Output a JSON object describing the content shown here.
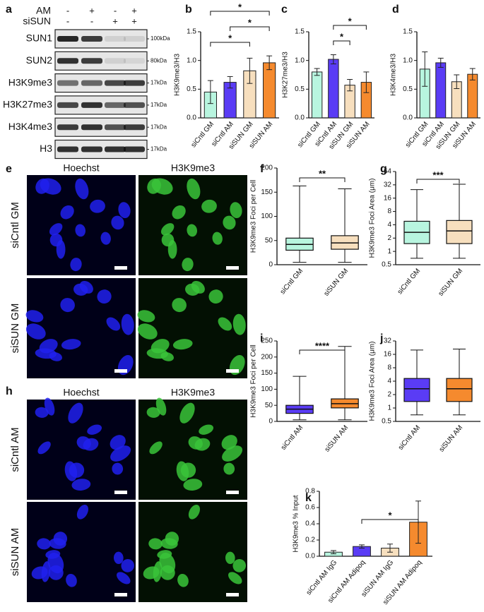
{
  "panel_labels": [
    "a",
    "b",
    "c",
    "d",
    "e",
    "f",
    "g",
    "h",
    "i",
    "j",
    "k"
  ],
  "blot": {
    "header_rows": [
      {
        "label": "AM",
        "lanes": [
          "-",
          "+",
          "-",
          "+"
        ]
      },
      {
        "label": "siSUN",
        "lanes": [
          "-",
          "-",
          "+",
          "+"
        ]
      }
    ],
    "rows": [
      {
        "label": "SUN1",
        "size": "100kDa"
      },
      {
        "label": "SUN2",
        "size": "80kDa"
      },
      {
        "label": "H3K9me3",
        "size": "17kDa"
      },
      {
        "label": "H3K27me3",
        "size": "17kDa"
      },
      {
        "label": "H3K4me3",
        "size": "17kDa"
      },
      {
        "label": "H3",
        "size": "17kDa"
      }
    ]
  },
  "images": {
    "e": {
      "columns": [
        "Hoechst",
        "H3K9me3"
      ],
      "rows": [
        "siCntl GM",
        "siSUN GM"
      ]
    },
    "h": {
      "columns": [
        "Hoechst",
        "H3K9me3"
      ],
      "rows": [
        "siCntl AM",
        "siSUN AM"
      ]
    }
  },
  "chart_data": [
    {
      "type": "bar",
      "ylabel": "H3K9me3/H3",
      "categories": [
        "siCntl GM",
        "siCntl AM",
        "siSUN GM",
        "siSUN AM"
      ],
      "values": [
        0.45,
        0.62,
        0.82,
        0.96
      ],
      "errors": [
        0.2,
        0.1,
        0.22,
        0.12
      ],
      "colors": [
        "#b8f5df",
        "#5a3cf5",
        "#f7dfbe",
        "#f58a2e"
      ],
      "ylim": [
        0,
        1.5
      ],
      "yticks": [
        {
          "value": 0,
          "label": "0.0"
        },
        0.5,
        {
          "value": 1,
          "label": "1.0"
        },
        1.5
      ],
      "annotations": [
        {
          "text": "*",
          "between": [
            "siCntl GM",
            "siSUN AM"
          ]
        },
        {
          "text": "*",
          "between": [
            "siCntl AM",
            "siSUN AM"
          ]
        },
        {
          "text": "*",
          "between": [
            "siCntl GM",
            "siSUN GM"
          ]
        }
      ]
    },
    {
      "type": "bar",
      "ylabel": "H3K27me3/H3",
      "categories": [
        "siCntl GM",
        "siCntl AM",
        "siSUN GM",
        "siSUN AM"
      ],
      "values": [
        0.8,
        1.02,
        0.57,
        0.62
      ],
      "errors": [
        0.06,
        0.08,
        0.1,
        0.18
      ],
      "colors": [
        "#b8f5df",
        "#5a3cf5",
        "#f7dfbe",
        "#f58a2e"
      ],
      "ylim": [
        0,
        1.5
      ],
      "yticks": [
        {
          "value": 0,
          "label": "0.0"
        },
        0.5,
        {
          "value": 1,
          "label": "1.0"
        },
        1.5
      ],
      "annotations": [
        {
          "text": "*",
          "between": [
            "siCntl AM",
            "siSUN AM"
          ]
        },
        {
          "text": "*",
          "between": [
            "siCntl AM",
            "siSUN GM"
          ]
        }
      ]
    },
    {
      "type": "bar",
      "ylabel": "H3K4me3/H3",
      "categories": [
        "siCntl GM",
        "siCntl AM",
        "siSUN GM",
        "siSUN AM"
      ],
      "values": [
        0.85,
        0.96,
        0.63,
        0.76
      ],
      "errors": [
        0.3,
        0.08,
        0.12,
        0.1
      ],
      "colors": [
        "#b8f5df",
        "#5a3cf5",
        "#f7dfbe",
        "#f58a2e"
      ],
      "ylim": [
        0,
        1.5
      ],
      "yticks": [
        {
          "value": 0,
          "label": "0.0"
        },
        0.5,
        {
          "value": 1,
          "label": "1.0"
        },
        1.5
      ],
      "annotations": []
    },
    {
      "type": "box",
      "ylabel": "H3K9me3 Foci per Cell",
      "categories": [
        "siCntl GM",
        "siSUN GM"
      ],
      "min": [
        5,
        5
      ],
      "q1": [
        30,
        32
      ],
      "median": [
        42,
        45
      ],
      "q3": [
        55,
        60
      ],
      "max": [
        163,
        157
      ],
      "colors": [
        "#b8f5df",
        "#f7dfbe"
      ],
      "ylim": [
        0,
        200
      ],
      "yticks": [
        0,
        50,
        100,
        150,
        200
      ],
      "annotations": [
        {
          "text": "**",
          "between": [
            "siCntl GM",
            "siSUN GM"
          ]
        }
      ]
    },
    {
      "type": "box",
      "ylabel": "H3K9me3 Foci Area (μm)",
      "log_scale": true,
      "categories": [
        "siCntl GM",
        "siSUN GM"
      ],
      "min": [
        0.7,
        0.7
      ],
      "q1": [
        1.5,
        1.5
      ],
      "median": [
        2.7,
        2.9
      ],
      "q3": [
        4.8,
        5
      ],
      "max": [
        25,
        33
      ],
      "colors": [
        "#b8f5df",
        "#f7dfbe"
      ],
      "ylim": [
        0.5,
        64
      ],
      "yticks": [
        0.5,
        1,
        2,
        4,
        8,
        16,
        32,
        64
      ],
      "annotations": [
        {
          "text": "***",
          "between": [
            "siCntl GM",
            "siSUN GM"
          ]
        }
      ]
    },
    {
      "type": "box",
      "ylabel": "H3K9me3 Foci per Cell",
      "categories": [
        "siCntl AM",
        "siSUN AM"
      ],
      "min": [
        5,
        5
      ],
      "q1": [
        25,
        42
      ],
      "median": [
        38,
        55
      ],
      "q3": [
        50,
        70
      ],
      "max": [
        140,
        233
      ],
      "colors": [
        "#5a3cf5",
        "#f58a2e"
      ],
      "ylim": [
        0,
        250
      ],
      "yticks": [
        0,
        50,
        100,
        150,
        200,
        250
      ],
      "annotations": [
        {
          "text": "****",
          "between": [
            "siCntl AM",
            "siSUN AM"
          ]
        }
      ]
    },
    {
      "type": "box",
      "ylabel": "H3K9me3 Foci Area (μm)",
      "log_scale": true,
      "categories": [
        "siCntl AM",
        "siSUN AM"
      ],
      "min": [
        0.7,
        0.7
      ],
      "q1": [
        1.4,
        1.4
      ],
      "median": [
        2.7,
        2.7
      ],
      "q3": [
        4.6,
        4.6
      ],
      "max": [
        20,
        21
      ],
      "colors": [
        "#5a3cf5",
        "#f58a2e"
      ],
      "ylim": [
        0.5,
        32
      ],
      "yticks": [
        0.5,
        1,
        2,
        4,
        8,
        16,
        32
      ],
      "annotations": []
    },
    {
      "type": "bar",
      "ylabel": "H3K9me3 % Input",
      "categories": [
        "siCntl AM IgG",
        "siCntl AM Adipoq",
        "siSUN AM IgG",
        "siSUN AM Adipoq"
      ],
      "values": [
        0.05,
        0.12,
        0.1,
        0.42
      ],
      "errors": [
        0.02,
        0.02,
        0.05,
        0.26
      ],
      "colors": [
        "#b8f5df",
        "#5a3cf5",
        "#f7dfbe",
        "#f58a2e"
      ],
      "ylim": [
        0,
        0.8
      ],
      "yticks": [
        {
          "value": 0,
          "label": "0.0"
        },
        0.2,
        0.4,
        0.6,
        0.8
      ],
      "annotations": [
        {
          "text": "*",
          "between": [
            "siCntl AM Adipoq",
            "siSUN AM Adipoq"
          ]
        }
      ]
    }
  ]
}
